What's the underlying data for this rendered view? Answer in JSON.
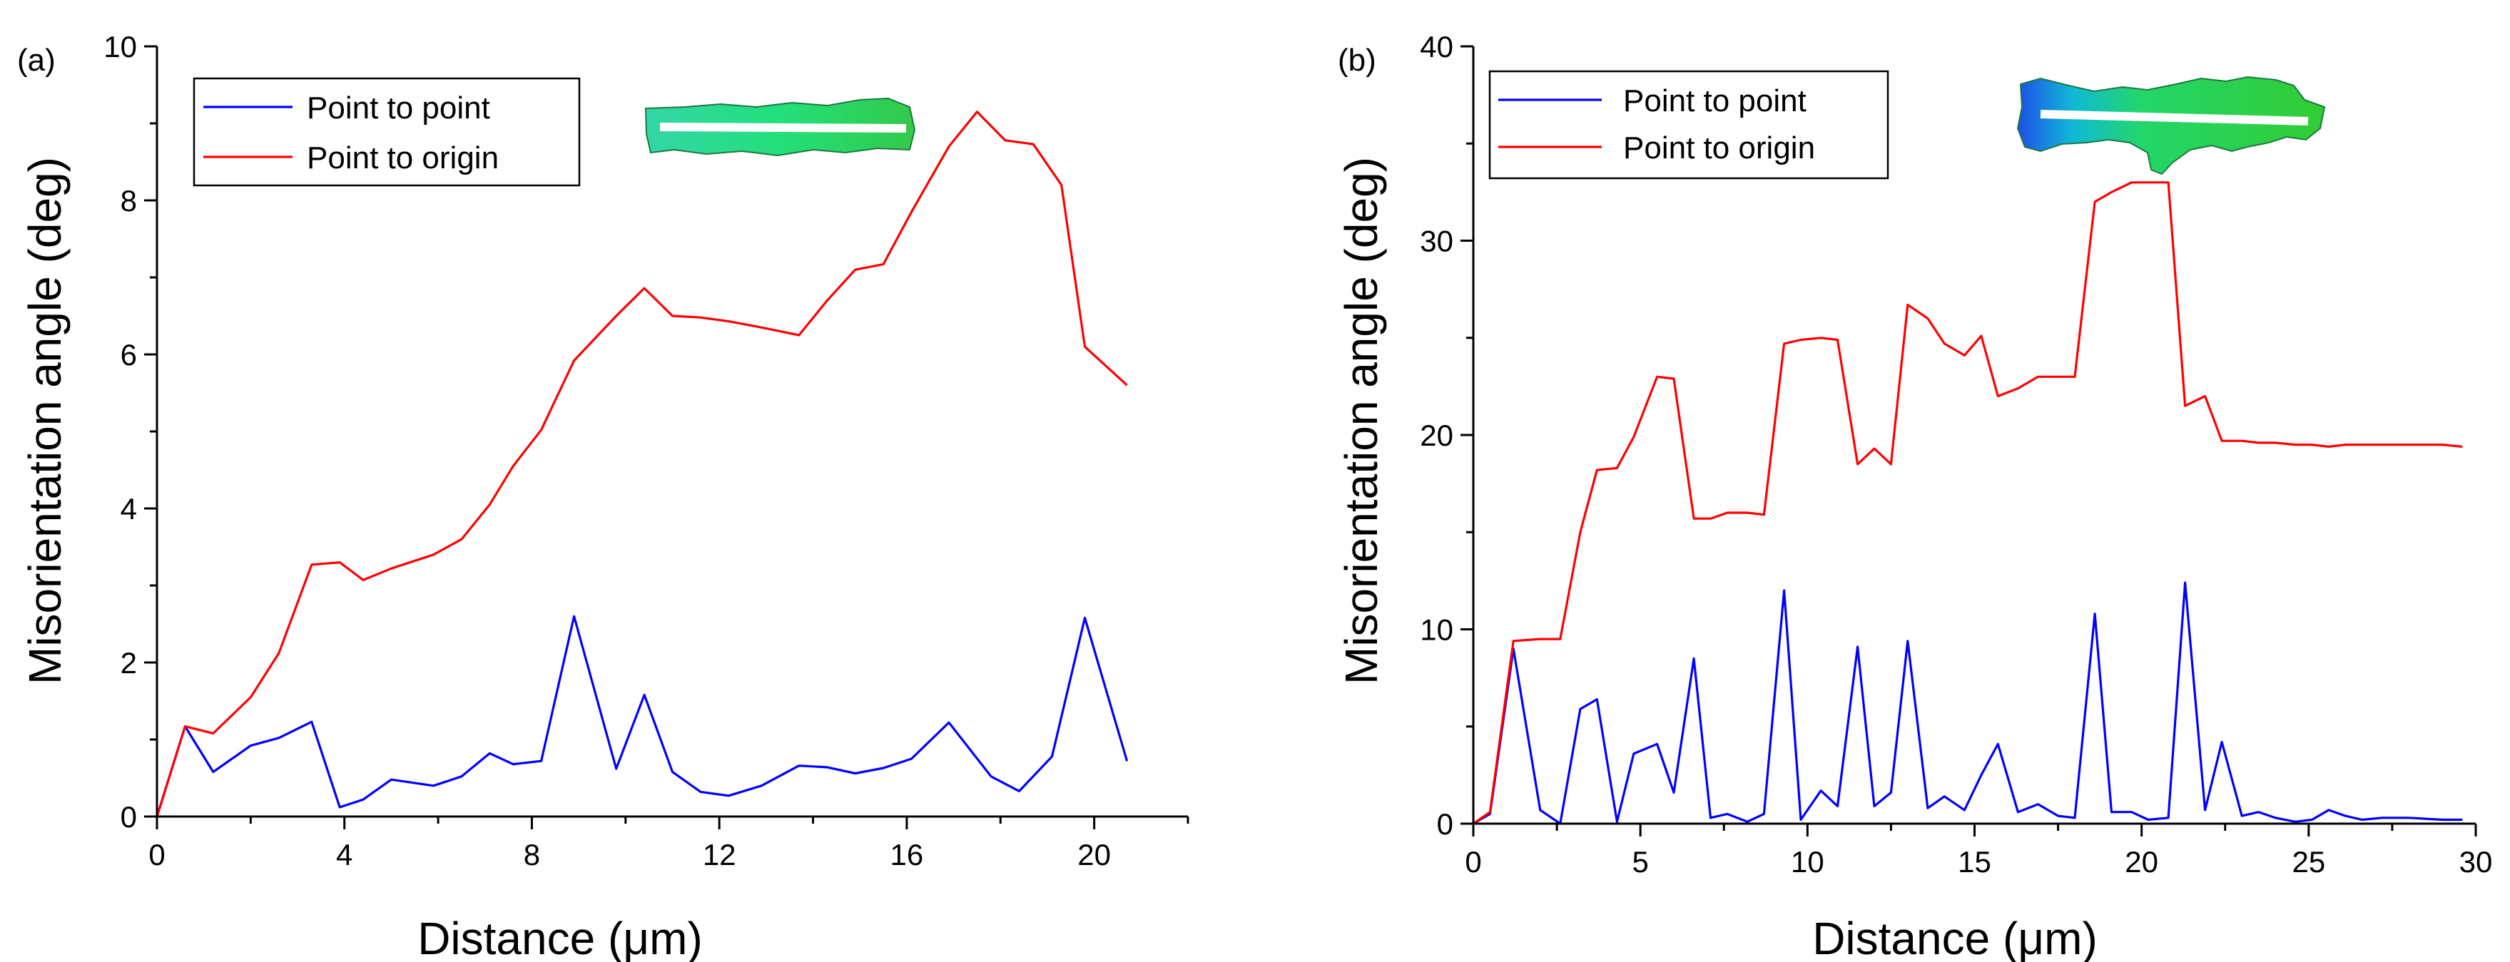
{
  "chart_data": [
    {
      "panel_label": "(a)",
      "type": "line",
      "title": "",
      "xlabel": "Distance (μm)",
      "ylabel": "Misorientation angle (deg)",
      "xlim": [
        0,
        22
      ],
      "ylim": [
        0,
        10
      ],
      "xticks": [
        0,
        4,
        8,
        12,
        16,
        20
      ],
      "yticks": [
        0,
        2,
        4,
        6,
        8,
        10
      ],
      "legend": "top-left",
      "series": [
        {
          "name": "Point to point",
          "color": "#0000ff",
          "x": [
            0,
            0.6,
            1.2,
            2.0,
            2.6,
            3.3,
            3.9,
            4.4,
            5.0,
            5.9,
            6.5,
            7.1,
            7.6,
            8.2,
            8.9,
            9.8,
            10.4,
            11.0,
            11.6,
            12.2,
            12.9,
            13.7,
            14.3,
            14.9,
            15.5,
            16.1,
            16.9,
            17.8,
            18.4,
            19.1,
            19.8,
            20.7
          ],
          "y": [
            0,
            1.17,
            0.58,
            0.92,
            1.02,
            1.23,
            0.12,
            0.22,
            0.48,
            0.4,
            0.52,
            0.82,
            0.68,
            0.72,
            2.6,
            0.62,
            1.58,
            0.58,
            0.32,
            0.27,
            0.4,
            0.66,
            0.64,
            0.56,
            0.63,
            0.75,
            1.22,
            0.52,
            0.33,
            0.78,
            2.58,
            0.72
          ]
        },
        {
          "name": "Point to origin",
          "color": "#ff0000",
          "x": [
            0,
            0.6,
            1.2,
            2.0,
            2.6,
            3.3,
            3.9,
            4.4,
            5.0,
            5.9,
            6.5,
            7.1,
            7.6,
            8.2,
            8.9,
            9.8,
            10.4,
            11.0,
            11.6,
            12.2,
            12.9,
            13.7,
            14.3,
            14.9,
            15.5,
            16.1,
            16.9,
            17.5,
            18.1,
            18.7,
            19.3,
            19.8,
            20.7
          ],
          "y": [
            0,
            1.17,
            1.08,
            1.55,
            2.12,
            3.27,
            3.3,
            3.07,
            3.22,
            3.4,
            3.6,
            4.05,
            4.55,
            5.02,
            5.92,
            6.5,
            6.86,
            6.5,
            6.48,
            6.43,
            6.35,
            6.25,
            6.7,
            7.1,
            7.17,
            7.85,
            8.7,
            9.15,
            8.78,
            8.73,
            8.2,
            6.1,
            5.6
          ]
        }
      ]
    },
    {
      "panel_label": "(b)",
      "type": "line",
      "title": "",
      "xlabel": "Distance (μm)",
      "ylabel": "Misorientation angle (deg)",
      "xlim": [
        0,
        30
      ],
      "ylim": [
        0,
        40
      ],
      "xticks": [
        0,
        5,
        10,
        15,
        20,
        25,
        30
      ],
      "yticks": [
        0,
        10,
        20,
        30,
        40
      ],
      "legend": "top-left",
      "series": [
        {
          "name": "Point to point",
          "color": "#0000ff",
          "x": [
            0,
            0.5,
            1.2,
            2.0,
            2.6,
            3.2,
            3.7,
            4.3,
            4.8,
            5.5,
            6.0,
            6.6,
            7.1,
            7.6,
            8.2,
            8.7,
            9.3,
            9.8,
            10.4,
            10.9,
            11.5,
            12.0,
            12.5,
            13.0,
            13.6,
            14.1,
            14.7,
            15.2,
            15.7,
            16.3,
            16.9,
            17.5,
            18.0,
            18.6,
            19.1,
            19.7,
            20.2,
            20.8,
            21.3,
            21.9,
            22.4,
            23.0,
            23.5,
            24.0,
            24.6,
            25.1,
            25.6,
            26.1,
            26.6,
            27.2,
            28.0,
            29.0,
            29.6
          ],
          "y": [
            0,
            0.5,
            9.0,
            0.7,
            0,
            5.9,
            6.4,
            0.1,
            3.6,
            4.1,
            1.6,
            8.5,
            0.3,
            0.5,
            0.1,
            0.5,
            12.0,
            0.2,
            1.7,
            0.9,
            9.1,
            0.9,
            1.6,
            9.4,
            0.8,
            1.4,
            0.7,
            2.5,
            4.1,
            0.6,
            1.0,
            0.4,
            0.3,
            10.8,
            0.6,
            0.6,
            0.2,
            0.3,
            12.4,
            0.7,
            4.2,
            0.4,
            0.6,
            0.3,
            0.1,
            0.2,
            0.7,
            0.4,
            0.2,
            0.3,
            0.3,
            0.2,
            0.2
          ]
        },
        {
          "name": "Point to origin",
          "color": "#ff0000",
          "x": [
            0,
            0.5,
            1.2,
            2.0,
            2.6,
            3.2,
            3.7,
            4.3,
            4.8,
            5.5,
            6.0,
            6.6,
            7.1,
            7.6,
            8.2,
            8.7,
            9.3,
            9.8,
            10.4,
            10.9,
            11.5,
            12.0,
            12.5,
            13.0,
            13.6,
            14.1,
            14.7,
            15.2,
            15.7,
            16.3,
            16.9,
            17.5,
            18.0,
            18.6,
            19.1,
            19.7,
            20.2,
            20.8,
            21.3,
            21.9,
            22.4,
            23.0,
            23.5,
            24.0,
            24.6,
            25.1,
            25.6,
            26.1,
            26.6,
            27.2,
            28.0,
            29.0,
            29.6
          ],
          "y": [
            0,
            0.6,
            9.4,
            9.5,
            9.5,
            15.0,
            18.2,
            18.3,
            19.9,
            23.0,
            22.9,
            15.7,
            15.7,
            16.0,
            16.0,
            15.9,
            24.7,
            24.9,
            25.0,
            24.9,
            18.5,
            19.3,
            18.5,
            26.7,
            26.0,
            24.7,
            24.1,
            25.1,
            22.0,
            22.4,
            23.0,
            23.0,
            23.0,
            32.0,
            32.5,
            33.0,
            33.0,
            33.0,
            21.5,
            22.0,
            19.7,
            19.7,
            19.6,
            19.6,
            19.5,
            19.5,
            19.4,
            19.5,
            19.5,
            19.5,
            19.5,
            19.5,
            19.4
          ]
        }
      ]
    }
  ]
}
